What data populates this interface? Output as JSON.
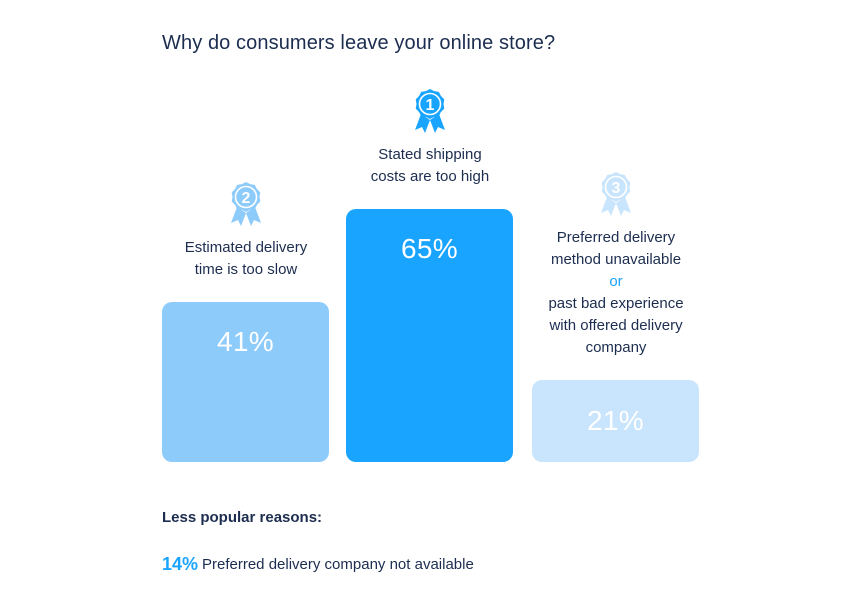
{
  "title": "Why do consumers leave your online store?",
  "colors": {
    "rank1": "#18a4ff",
    "rank2": "#8dcbfb",
    "rank3": "#c9e5fd",
    "text": "#1c2d4f",
    "accent": "#1aa3ff"
  },
  "chart_data": {
    "type": "bar",
    "title": "Why do consumers leave your online store?",
    "categories": [
      "Estimated delivery time is too slow",
      "Stated shipping costs are too high",
      "Preferred delivery method unavailable or past bad experience with offered delivery company"
    ],
    "values": [
      41,
      65,
      21
    ],
    "value_labels": [
      "41%",
      "65%",
      "21%"
    ],
    "ranks": [
      "2",
      "1",
      "3"
    ],
    "unit": "%",
    "ylim": [
      0,
      65
    ],
    "bars": [
      {
        "rank": "2",
        "value": 41,
        "value_label": "41%",
        "label_lines": [
          "Estimated delivery",
          "time is too slow"
        ],
        "or_text": "",
        "label_lines_after": []
      },
      {
        "rank": "1",
        "value": 65,
        "value_label": "65%",
        "label_lines": [
          "Stated shipping",
          "costs are too high"
        ],
        "or_text": "",
        "label_lines_after": []
      },
      {
        "rank": "3",
        "value": 21,
        "value_label": "21%",
        "label_lines": [
          "Preferred delivery",
          "method unavailable"
        ],
        "or_text": "or",
        "label_lines_after": [
          "past bad experience",
          "with offered delivery",
          "company"
        ]
      }
    ]
  },
  "less_popular": {
    "heading": "Less popular reasons:",
    "items": [
      {
        "value": "14%",
        "label": "Preferred delivery company not available"
      }
    ]
  }
}
